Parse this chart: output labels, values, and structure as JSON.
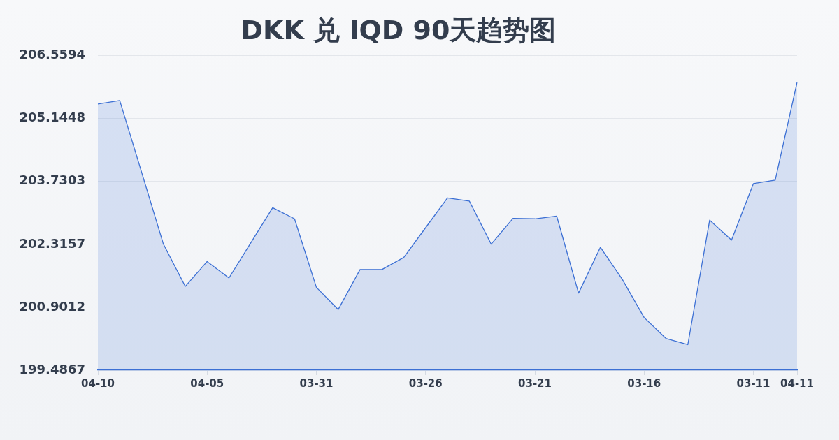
{
  "chart_data": {
    "type": "area",
    "title": "DKK 兑 IQD 90天趋势图",
    "categories": [
      "04-10",
      null,
      null,
      null,
      null,
      "04-05",
      null,
      null,
      null,
      null,
      "03-31",
      null,
      null,
      null,
      null,
      "03-26",
      null,
      null,
      null,
      null,
      "03-21",
      null,
      null,
      null,
      null,
      "03-16",
      null,
      null,
      null,
      null,
      "03-11",
      null,
      "04-11"
    ],
    "series": [
      {
        "color": "#3b6fd4",
        "values": [
          205.47,
          205.55,
          203.94,
          202.32,
          201.37,
          201.93,
          201.56,
          202.35,
          203.14,
          202.89,
          201.35,
          200.85,
          201.75,
          201.75,
          202.02,
          202.69,
          203.36,
          203.29,
          202.32,
          202.9,
          202.89,
          202.95,
          201.22,
          202.25,
          201.53,
          200.67,
          200.2,
          200.06,
          202.86,
          202.41,
          203.68,
          203.76,
          205.96
        ]
      }
    ],
    "ylim": [
      199.4867,
      206.5594
    ],
    "yticks": [
      199.4867,
      200.9012,
      202.3157,
      203.7303,
      205.1448,
      206.5594
    ],
    "grid": "y",
    "legend": false,
    "marker": "none",
    "line_style": "solid"
  }
}
